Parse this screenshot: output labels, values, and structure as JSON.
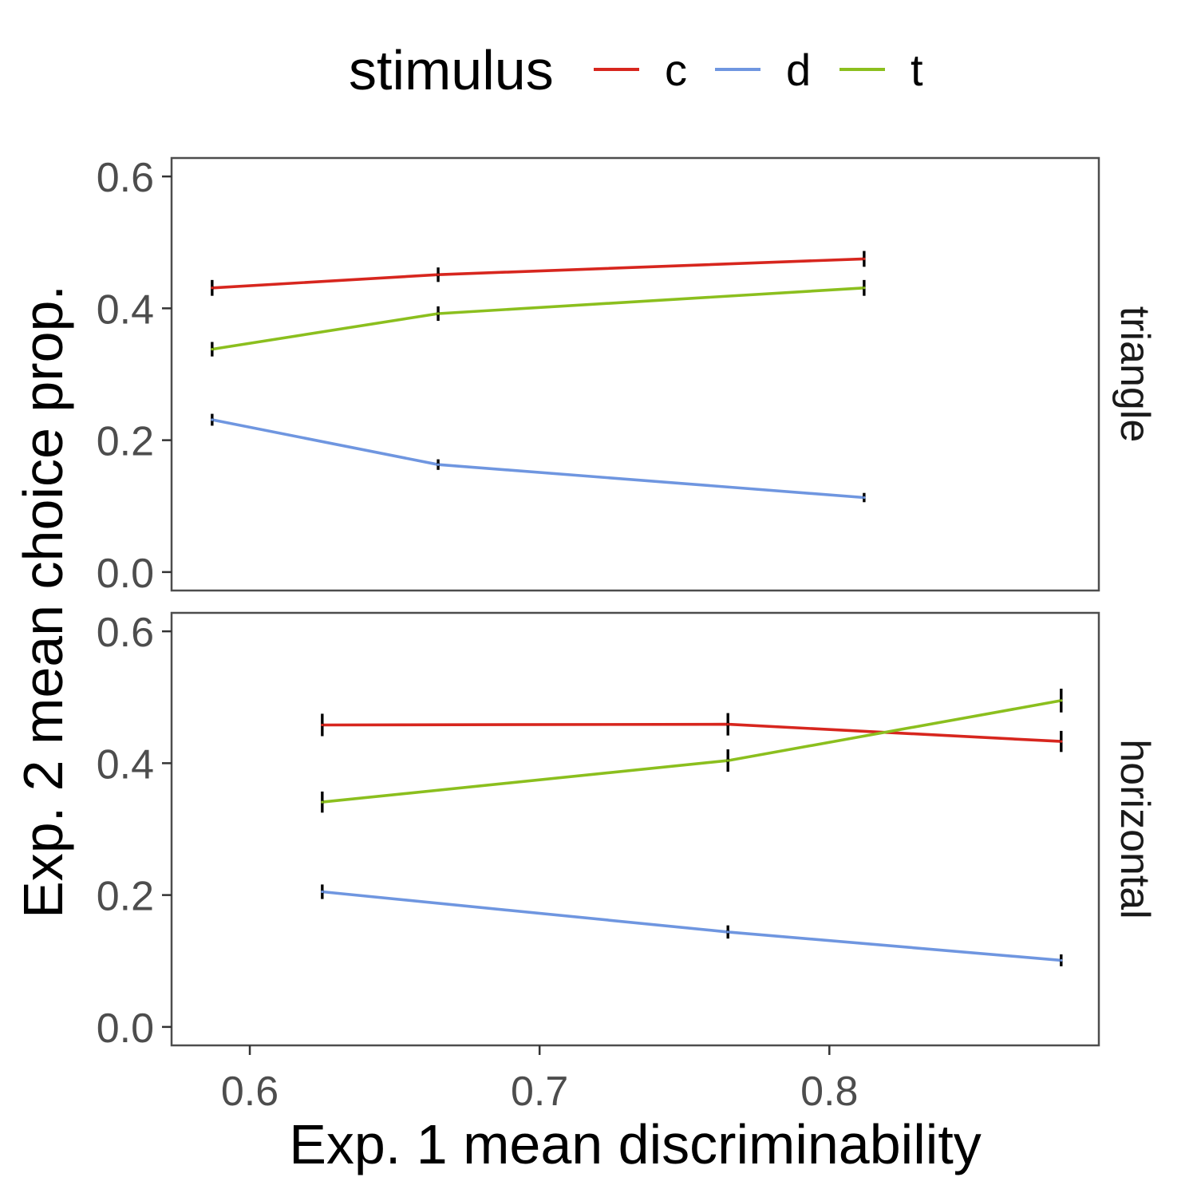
{
  "chart_data": {
    "type": "line",
    "xlabel": "Exp. 1 mean discriminability",
    "ylabel": "Exp. 2 mean choice prop.",
    "xlim": [
      0.573,
      0.893
    ],
    "ylim": [
      -0.028,
      0.628
    ],
    "x_ticks": [
      "0.6",
      "0.7",
      "0.8"
    ],
    "y_ticks": [
      "0.0",
      "0.2",
      "0.4",
      "0.6"
    ],
    "grid": false,
    "legend": {
      "title": "stimulus",
      "position": "top",
      "entries": [
        {
          "label": "c",
          "color": "#d7261e"
        },
        {
          "label": "d",
          "color": "#6f96e0"
        },
        {
          "label": "t",
          "color": "#8bbf1e"
        }
      ]
    },
    "panels": [
      {
        "label": "triangle",
        "x": [
          0.587,
          0.665,
          0.812
        ],
        "series": [
          {
            "name": "c",
            "values": [
              0.431,
              0.451,
              0.475
            ],
            "errors": [
              0.012,
              0.011,
              0.012
            ]
          },
          {
            "name": "d",
            "values": [
              0.231,
              0.163,
              0.113
            ],
            "errors": [
              0.009,
              0.008,
              0.007
            ]
          },
          {
            "name": "t",
            "values": [
              0.338,
              0.392,
              0.431
            ],
            "errors": [
              0.011,
              0.011,
              0.012
            ]
          }
        ]
      },
      {
        "label": "horizontal",
        "x": [
          0.625,
          0.765,
          0.88
        ],
        "series": [
          {
            "name": "c",
            "values": [
              0.458,
              0.459,
              0.433
            ],
            "errors": [
              0.017,
              0.017,
              0.016
            ]
          },
          {
            "name": "d",
            "values": [
              0.205,
              0.144,
              0.101
            ],
            "errors": [
              0.011,
              0.01,
              0.009
            ]
          },
          {
            "name": "t",
            "values": [
              0.341,
              0.404,
              0.495
            ],
            "errors": [
              0.016,
              0.017,
              0.018
            ]
          }
        ]
      }
    ]
  }
}
